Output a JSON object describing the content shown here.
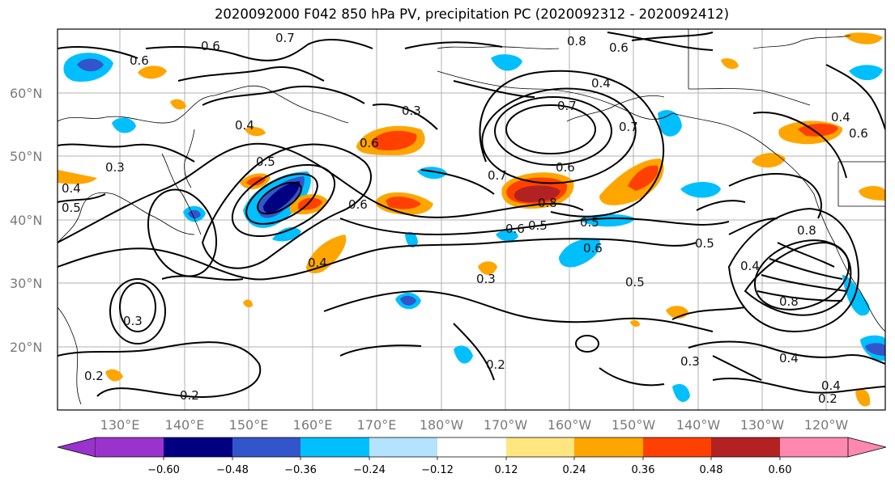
{
  "title": "2020092000 F042 850 hPa PV, precipitation PC (2020092312 - 2020092412)",
  "map": {
    "lat_labels": [
      "20°N",
      "30°N",
      "40°N",
      "50°N",
      "60°N"
    ],
    "lon_labels": [
      "130°E",
      "140°E",
      "150°E",
      "160°E",
      "170°E",
      "180°W",
      "170°W",
      "160°W",
      "150°W",
      "140°W",
      "130°W",
      "120°W"
    ],
    "contour_labels": [
      "0.6",
      "0.7",
      "0.8",
      "0.6",
      "0.6",
      "0.4",
      "0.3",
      "0.4",
      "0.5",
      "0.3",
      "0.7",
      "0.7",
      "0.6",
      "0.4",
      "0.5",
      "0.6",
      "0.7",
      "0.6",
      "0.5",
      "0.6",
      "0.5",
      "0.5",
      "0.4",
      "0.5",
      "0.8",
      "0.3",
      "0.8",
      "0.4",
      "0.6",
      "0.8",
      "0.3",
      "0.4",
      "0.2",
      "0.3",
      "0.2",
      "0.2",
      "0.2",
      "0.6",
      "0.4",
      "0.4"
    ]
  },
  "colorbar": {
    "ticks": [
      "−0.60",
      "−0.48",
      "−0.36",
      "−0.24",
      "−0.12",
      "0.12",
      "0.24",
      "0.36",
      "0.48",
      "0.60"
    ],
    "colors": [
      "#9933cc",
      "#000080",
      "#3355cc",
      "#00bfff",
      "#b3e3ff",
      "#ffffff",
      "#ffe680",
      "#ffa500",
      "#ff4000",
      "#b22222",
      "#ff88b0"
    ]
  }
}
